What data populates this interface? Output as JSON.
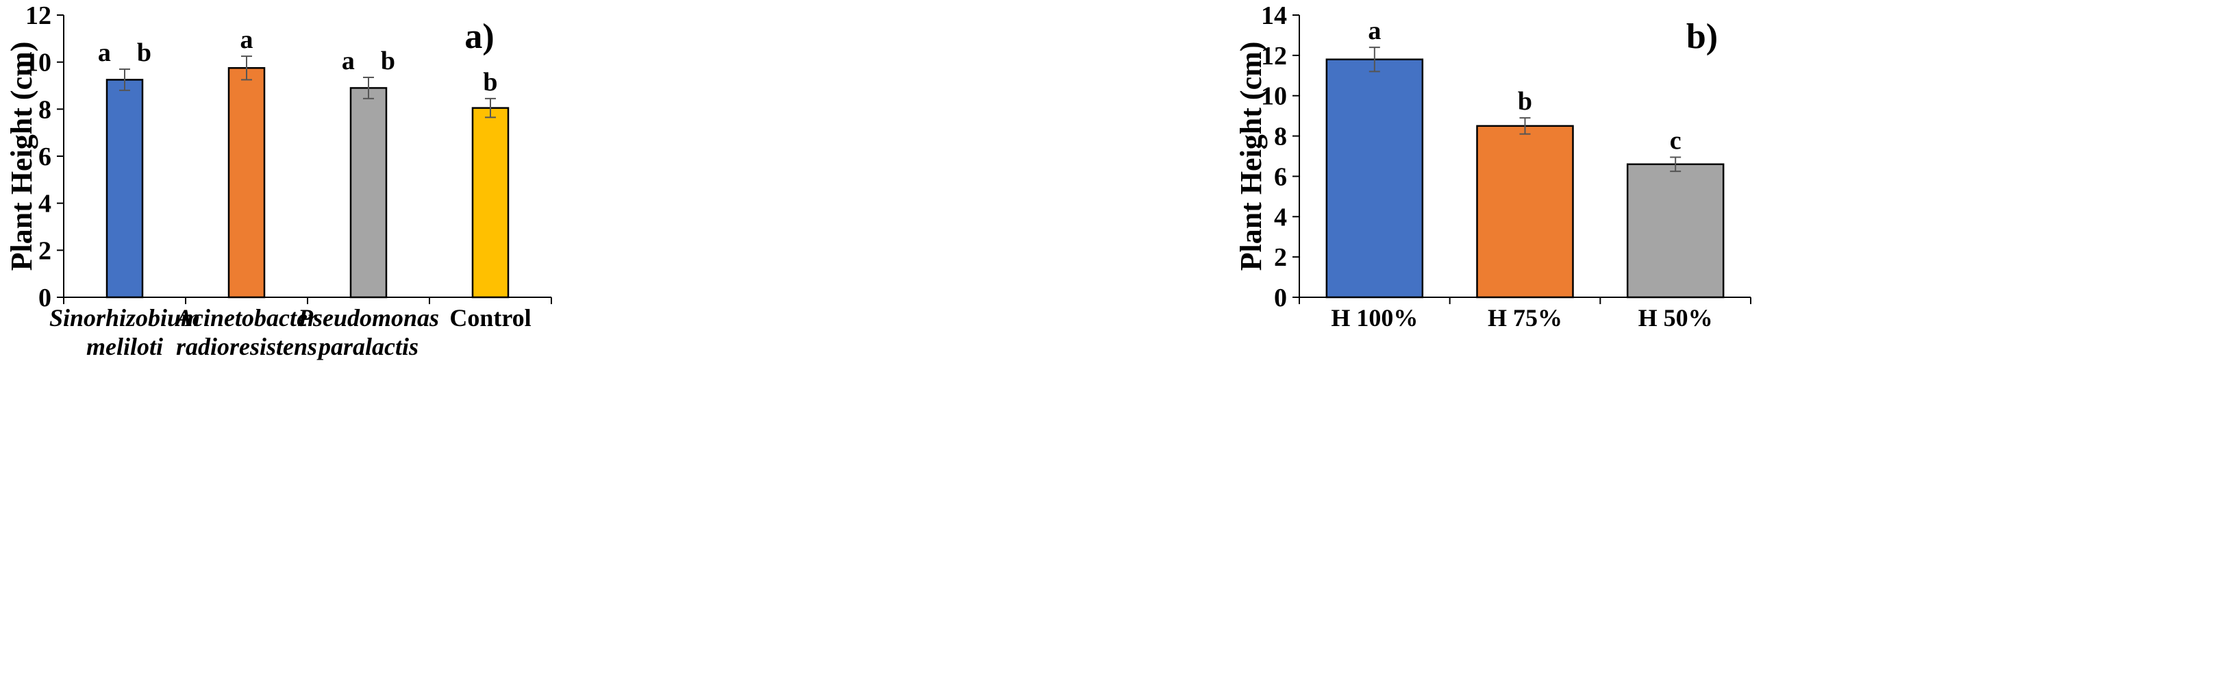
{
  "chart_data": [
    {
      "type": "bar",
      "panel_label": "a)",
      "ylabel": "Plant Height (cm)",
      "xlabel": "",
      "ylim": [
        0,
        12
      ],
      "yticks": [
        "0",
        "2",
        "4",
        "6",
        "8",
        "10",
        "12"
      ],
      "categories": [
        {
          "lines": [
            "Sinorhizobium",
            "meliloti"
          ],
          "italic": true
        },
        {
          "lines": [
            "Acinetobacter",
            "radioresistens"
          ],
          "italic": true
        },
        {
          "lines": [
            "Pseudomonas",
            "paralactis"
          ],
          "italic": true
        },
        {
          "lines": [
            "Control"
          ],
          "italic": false
        }
      ],
      "values": [
        9.25,
        9.75,
        8.9,
        8.05
      ],
      "errors": [
        0.45,
        0.5,
        0.45,
        0.4
      ],
      "colors": [
        "#4472c4",
        "#ed7d31",
        "#a5a5a5",
        "#ffc000"
      ],
      "significance": [
        "a b",
        "a",
        "a b",
        "b"
      ]
    },
    {
      "type": "bar",
      "panel_label": "b)",
      "ylabel": "Plant Height (cm)",
      "xlabel": "",
      "ylim": [
        0,
        14
      ],
      "yticks": [
        "0",
        "2",
        "4",
        "6",
        "8",
        "10",
        "12",
        "14"
      ],
      "categories": [
        {
          "lines": [
            "H 100%"
          ],
          "italic": false
        },
        {
          "lines": [
            "H 75%"
          ],
          "italic": false
        },
        {
          "lines": [
            "H 50%"
          ],
          "italic": false
        }
      ],
      "values": [
        11.8,
        8.5,
        6.6
      ],
      "errors": [
        0.6,
        0.4,
        0.35
      ],
      "colors": [
        "#4472c4",
        "#ed7d31",
        "#a5a5a5"
      ],
      "significance": [
        "a",
        "b",
        "c"
      ]
    }
  ]
}
